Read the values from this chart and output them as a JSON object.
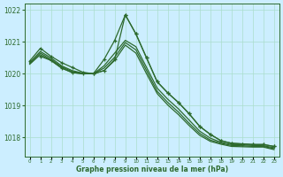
{
  "xlabel": "Graphe pression niveau de la mer (hPa)",
  "background_color": "#cceeff",
  "grid_color": "#aaddcc",
  "line_color": "#2d6a2d",
  "ylim": [
    1017.4,
    1022.2
  ],
  "yticks": [
    1018,
    1019,
    1020,
    1021,
    1022
  ],
  "xlim": [
    -0.5,
    23.5
  ],
  "xticks": [
    0,
    1,
    2,
    3,
    4,
    5,
    6,
    7,
    8,
    9,
    10,
    11,
    12,
    13,
    14,
    15,
    16,
    17,
    18,
    19,
    20,
    21,
    22,
    23
  ],
  "series": [
    {
      "x": [
        0,
        1,
        2,
        3,
        4,
        5,
        6,
        7,
        8,
        9,
        10,
        11,
        12,
        13,
        14,
        15,
        16,
        17,
        18,
        19,
        20,
        21,
        22,
        23
      ],
      "y": [
        1020.4,
        1020.8,
        1020.55,
        1020.35,
        1020.2,
        1020.05,
        1020.0,
        1020.45,
        1021.05,
        1021.85,
        1021.25,
        1020.5,
        1019.75,
        1019.4,
        1019.1,
        1018.75,
        1018.35,
        1018.1,
        1017.9,
        1017.82,
        1017.8,
        1017.78,
        1017.78,
        1017.72
      ],
      "marker": true
    },
    {
      "x": [
        0,
        1,
        2,
        3,
        4,
        5,
        6,
        7,
        8,
        9,
        10,
        11,
        12,
        13,
        14,
        15,
        16,
        17,
        18,
        19,
        20,
        21,
        22,
        23
      ],
      "y": [
        1020.35,
        1020.7,
        1020.5,
        1020.25,
        1020.1,
        1020.02,
        1020.0,
        1020.25,
        1020.65,
        1021.05,
        1020.85,
        1020.2,
        1019.55,
        1019.2,
        1018.9,
        1018.55,
        1018.2,
        1017.98,
        1017.85,
        1017.78,
        1017.77,
        1017.75,
        1017.74,
        1017.68
      ],
      "marker": false
    },
    {
      "x": [
        0,
        1,
        2,
        3,
        4,
        5,
        6,
        7,
        8,
        9,
        10,
        11,
        12,
        13,
        14,
        15,
        16,
        17,
        18,
        19,
        20,
        21,
        22,
        23
      ],
      "y": [
        1020.32,
        1020.65,
        1020.45,
        1020.22,
        1020.07,
        1020.01,
        1020.0,
        1020.18,
        1020.52,
        1020.98,
        1020.75,
        1020.1,
        1019.45,
        1019.1,
        1018.8,
        1018.45,
        1018.13,
        1017.92,
        1017.82,
        1017.75,
        1017.74,
        1017.72,
        1017.72,
        1017.65
      ],
      "marker": false
    },
    {
      "x": [
        0,
        1,
        2,
        3,
        4,
        5,
        6,
        7,
        8,
        9,
        10,
        11,
        12,
        13,
        14,
        15,
        16,
        17,
        18,
        19,
        20,
        21,
        22,
        23
      ],
      "y": [
        1020.3,
        1020.6,
        1020.42,
        1020.18,
        1020.04,
        1020.0,
        1020.0,
        1020.1,
        1020.42,
        1020.9,
        1020.65,
        1020.0,
        1019.38,
        1019.02,
        1018.72,
        1018.38,
        1018.07,
        1017.88,
        1017.79,
        1017.72,
        1017.71,
        1017.7,
        1017.7,
        1017.62
      ],
      "marker": false
    },
    {
      "x": [
        1,
        2,
        3,
        4,
        5,
        6,
        7,
        8,
        9,
        10,
        11,
        12,
        13,
        14,
        15,
        16,
        17,
        18,
        19,
        20,
        21,
        22,
        23
      ],
      "y": [
        1020.55,
        1020.42,
        1020.18,
        1020.04,
        1020.0,
        1020.0,
        1020.1,
        1020.45,
        1021.85,
        1021.25,
        1020.5,
        1019.75,
        1019.4,
        1019.1,
        1018.75,
        1018.35,
        1018.1,
        1017.9,
        1017.82,
        1017.8,
        1017.78,
        1017.78,
        1017.72
      ],
      "marker": true
    }
  ]
}
